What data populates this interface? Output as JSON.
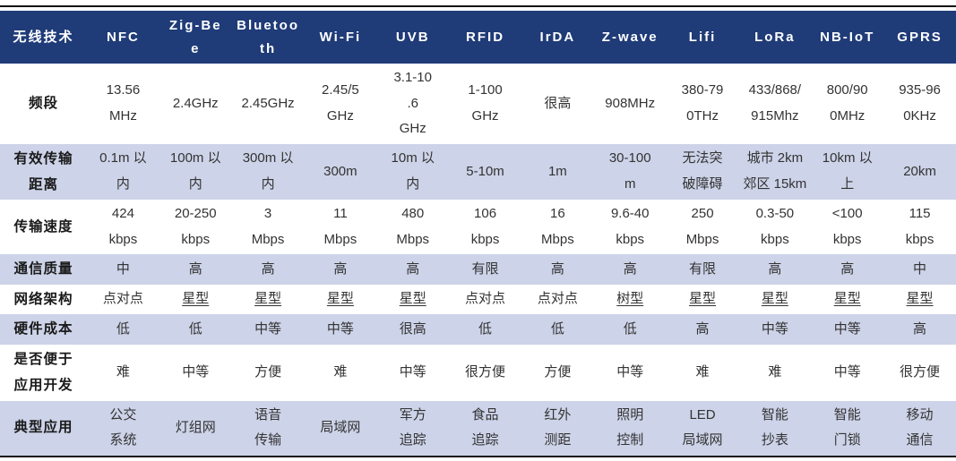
{
  "table": {
    "corner_label": "无线技术",
    "columns": [
      "NFC",
      "Zig-Be\ne",
      "Bluetoo\nth",
      "Wi-Fi",
      "UVB",
      "RFID",
      "IrDA",
      "Z-wave",
      "Lifi",
      "LoRa",
      "NB-IoT",
      "GPRS"
    ],
    "rows": [
      {
        "label": "频段",
        "cells": [
          "13.56\nMHz",
          "2.4GHz",
          "2.45GHz",
          "2.45/5\nGHz",
          "3.1-10\n.6\nGHz",
          "1-100\nGHz",
          "很高",
          "908MHz",
          "380-79\n0THz",
          "433/868/\n915Mhz",
          "800/90\n0MHz",
          "935-96\n0KHz"
        ]
      },
      {
        "label": "有效传输\n距离",
        "cells": [
          "0.1m 以\n内",
          "100m 以\n内",
          "300m 以\n内",
          "300m",
          "10m 以\n内",
          "5-10m",
          "1m",
          "30-100\nm",
          "无法突\n破障碍",
          "城市 2km\n郊区 15km",
          "10km 以\n上",
          "20km"
        ]
      },
      {
        "label": "传输速度",
        "cells": [
          "424\nkbps",
          "20-250\nkbps",
          "3\nMbps",
          "11\nMbps",
          "480\nMbps",
          "106\nkbps",
          "16\nMbps",
          "9.6-40\nkbps",
          "250\nMbps",
          "0.3-50\nkbps",
          "<100\nkbps",
          "115\nkbps"
        ]
      },
      {
        "label": "通信质量",
        "cells": [
          "中",
          "高",
          "高",
          "高",
          "高",
          "有限",
          "高",
          "高",
          "有限",
          "高",
          "高",
          "中"
        ]
      },
      {
        "label": "网络架构",
        "cells": [
          "点对点",
          "星型",
          "星型",
          "星型",
          "星型",
          "点对点",
          "点对点",
          "树型",
          "星型",
          "星型",
          "星型",
          "星型"
        ],
        "underline_cols": [
          1,
          2,
          3,
          4,
          7,
          8,
          9,
          10,
          11
        ]
      },
      {
        "label": "硬件成本",
        "cells": [
          "低",
          "低",
          "中等",
          "中等",
          "很高",
          "低",
          "低",
          "低",
          "高",
          "中等",
          "中等",
          "高"
        ]
      },
      {
        "label": "是否便于\n应用开发",
        "cells": [
          "难",
          "中等",
          "方便",
          "难",
          "中等",
          "很方便",
          "方便",
          "中等",
          "难",
          "难",
          "中等",
          "很方便"
        ]
      },
      {
        "label": "典型应用",
        "cells": [
          "公交\n系统",
          "灯组网",
          "语音\n传输",
          "局域网",
          "军方\n追踪",
          "食品\n追踪",
          "红外\n测距",
          "照明\n控制",
          "LED\n局域网",
          "智能\n抄表",
          "智能\n门锁",
          "移动\n通信"
        ]
      }
    ]
  },
  "colors": {
    "header_bg": "#1f3b78",
    "header_text": "#ffffff",
    "stripe_bg": "#cdd3e8",
    "body_text": "#333333",
    "label_text": "#1a1a1a",
    "border_line": "#111111"
  }
}
